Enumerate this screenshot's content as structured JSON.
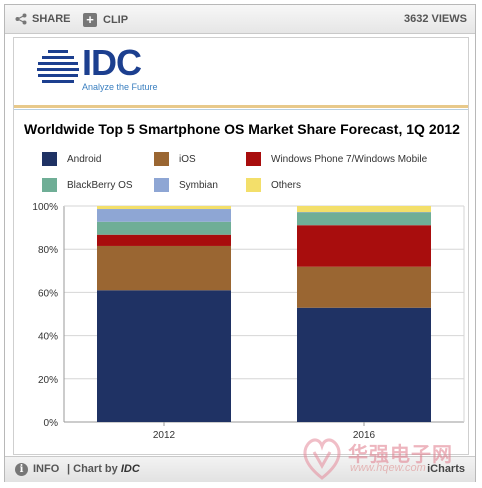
{
  "toolbar": {
    "share_label": "SHARE",
    "clip_label": "CLIP",
    "views_label": "3632 VIEWS"
  },
  "logo": {
    "brand": "IDC",
    "tagline": "Analyze the Future"
  },
  "footer": {
    "info_label": "INFO",
    "chart_by_prefix": "| Chart by",
    "chart_by_brand": "IDC",
    "provider": "iCharts"
  },
  "watermark": {
    "text": "华强电子网",
    "url": "www.hqew.com"
  },
  "colors": {
    "Android": "#1f3264",
    "iOS": "#9a6632",
    "Windows Phone 7/Windows Mobile": "#a80d0d",
    "BlackBerry OS": "#6fae96",
    "Symbian": "#8ea6d4",
    "Others": "#f3df6a"
  },
  "chart_data": {
    "type": "bar",
    "stacked": true,
    "title": "Worldwide Top 5 Smartphone OS Market Share Forecast, 1Q 2012",
    "xlabel": "",
    "ylabel": "",
    "categories": [
      "2012",
      "2016"
    ],
    "ylim": [
      0,
      100
    ],
    "yticks": [
      "0%",
      "20%",
      "40%",
      "60%",
      "80%",
      "100%"
    ],
    "grid": true,
    "legend_position": "top",
    "series": [
      {
        "name": "Android",
        "values": [
          61.0,
          52.9
        ]
      },
      {
        "name": "iOS",
        "values": [
          20.5,
          19.0
        ]
      },
      {
        "name": "Windows Phone 7/Windows Mobile",
        "values": [
          5.2,
          19.2
        ]
      },
      {
        "name": "BlackBerry OS",
        "values": [
          6.0,
          5.9
        ]
      },
      {
        "name": "Symbian",
        "values": [
          5.9,
          0.2
        ]
      },
      {
        "name": "Others",
        "values": [
          1.4,
          2.8
        ]
      }
    ]
  }
}
